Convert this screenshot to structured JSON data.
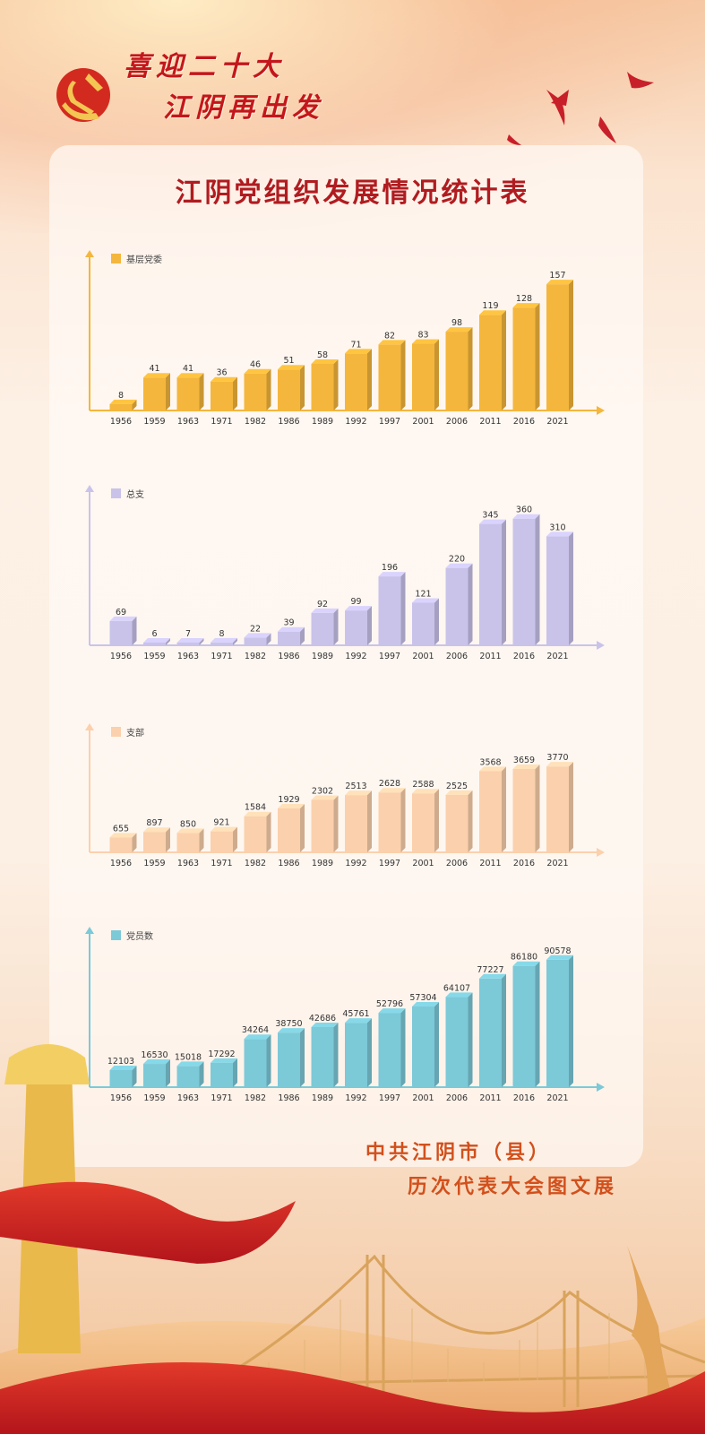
{
  "header": {
    "line1": "喜迎二十大",
    "line2": "江阴再出发"
  },
  "title": "江阴党组织发展情况统计表",
  "footer": {
    "line1": "中共江阴市（县）",
    "line2": "历次代表大会图文展"
  },
  "colors": {
    "title": "#b01c20",
    "series_1": "#f4b63c",
    "series_2": "#c9c3ea",
    "series_3": "#fbd0ac",
    "series_4": "#7cc9d8"
  },
  "chart_data": [
    {
      "type": "bar",
      "categories": [
        "1956",
        "1959",
        "1963",
        "1971",
        "1982",
        "1986",
        "1989",
        "1992",
        "1997",
        "2001",
        "2006",
        "2011",
        "2016",
        "2021"
      ],
      "series": [
        {
          "name": "基层党委",
          "values": [
            8,
            41,
            41,
            36,
            46,
            51,
            58,
            71,
            82,
            83,
            98,
            119,
            128,
            157
          ],
          "color": "#f4b63c"
        }
      ],
      "ylim": [
        0,
        175
      ],
      "legend": "top-left",
      "grid": false
    },
    {
      "type": "bar",
      "categories": [
        "1956",
        "1959",
        "1963",
        "1971",
        "1982",
        "1986",
        "1989",
        "1992",
        "1997",
        "2001",
        "2006",
        "2011",
        "2016",
        "2021"
      ],
      "series": [
        {
          "name": "总支",
          "values": [
            69,
            6,
            7,
            8,
            22,
            39,
            92,
            99,
            196,
            121,
            220,
            345,
            360,
            310
          ],
          "color": "#c9c3ea"
        }
      ],
      "ylim": [
        0,
        400
      ],
      "legend": "top-left",
      "grid": false
    },
    {
      "type": "bar",
      "categories": [
        "1956",
        "1959",
        "1963",
        "1971",
        "1982",
        "1986",
        "1989",
        "1992",
        "1997",
        "2001",
        "2006",
        "2011",
        "2016",
        "2021"
      ],
      "series": [
        {
          "name": "支部",
          "values": [
            655,
            897,
            850,
            921,
            1584,
            1929,
            2302,
            2513,
            2628,
            2588,
            2525,
            3568,
            3659,
            3770
          ],
          "color": "#fbd0ac"
        }
      ],
      "ylim": [
        0,
        4800
      ],
      "legend": "top-left",
      "grid": false
    },
    {
      "type": "bar",
      "categories": [
        "1956",
        "1959",
        "1963",
        "1971",
        "1982",
        "1986",
        "1989",
        "1992",
        "1997",
        "2001",
        "2006",
        "2011",
        "2016",
        "2021"
      ],
      "series": [
        {
          "name": "党员数",
          "values": [
            12103,
            16530,
            15018,
            17292,
            34264,
            38750,
            42686,
            45761,
            52796,
            57304,
            64107,
            77227,
            86180,
            90578
          ],
          "color": "#7cc9d8"
        }
      ],
      "ylim": [
        0,
        100000
      ],
      "legend": "top-left",
      "grid": false
    }
  ]
}
